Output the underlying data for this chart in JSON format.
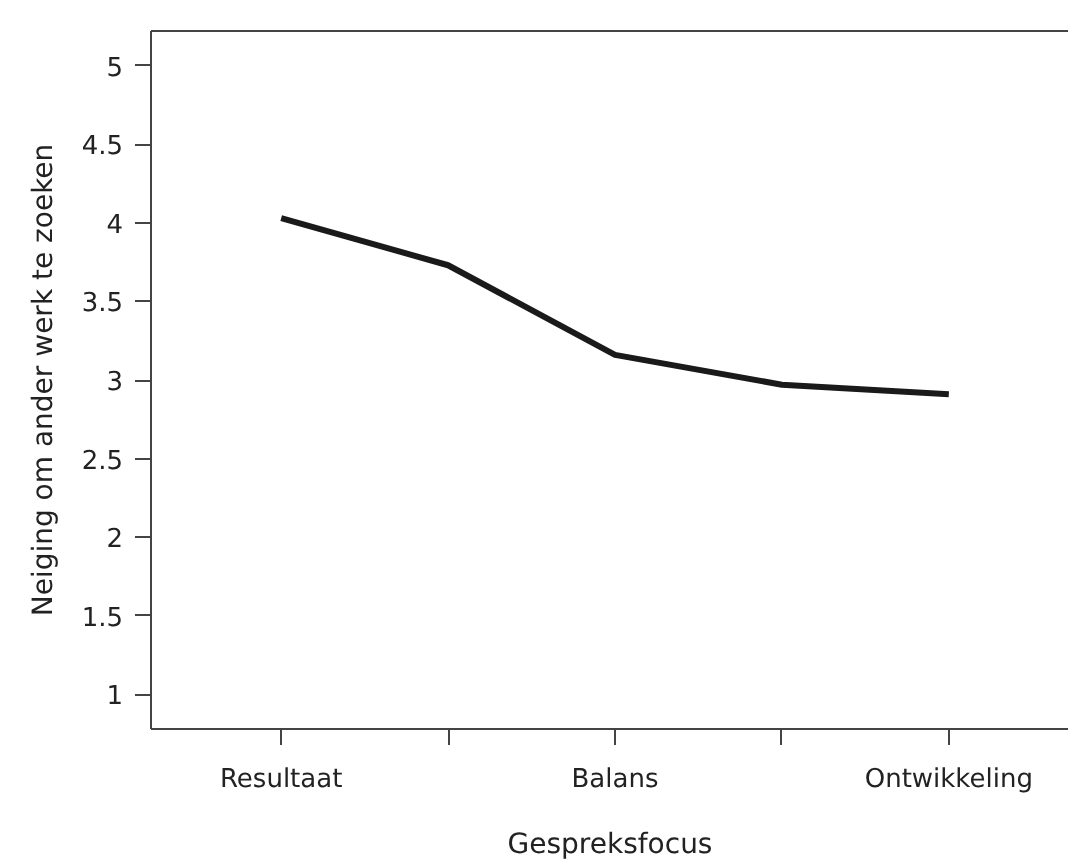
{
  "chart_data": {
    "type": "line",
    "xlabel": "Gespreksfocus",
    "ylabel": "Neiging om ander werk te zoeken",
    "categories": [
      "Resultaat",
      null,
      "Balans",
      null,
      "Ontwikkeling"
    ],
    "series": [
      {
        "color": "#1a1a1a",
        "values": [
          4.03,
          3.73,
          3.16,
          2.97,
          2.91
        ]
      }
    ],
    "ylim": [
      0.78,
      5.22
    ],
    "yticks": [
      1,
      1.5,
      2,
      2.5,
      3,
      3.5,
      4,
      4.5,
      5
    ],
    "grid": false,
    "marker": "none",
    "line_style": "solid"
  }
}
